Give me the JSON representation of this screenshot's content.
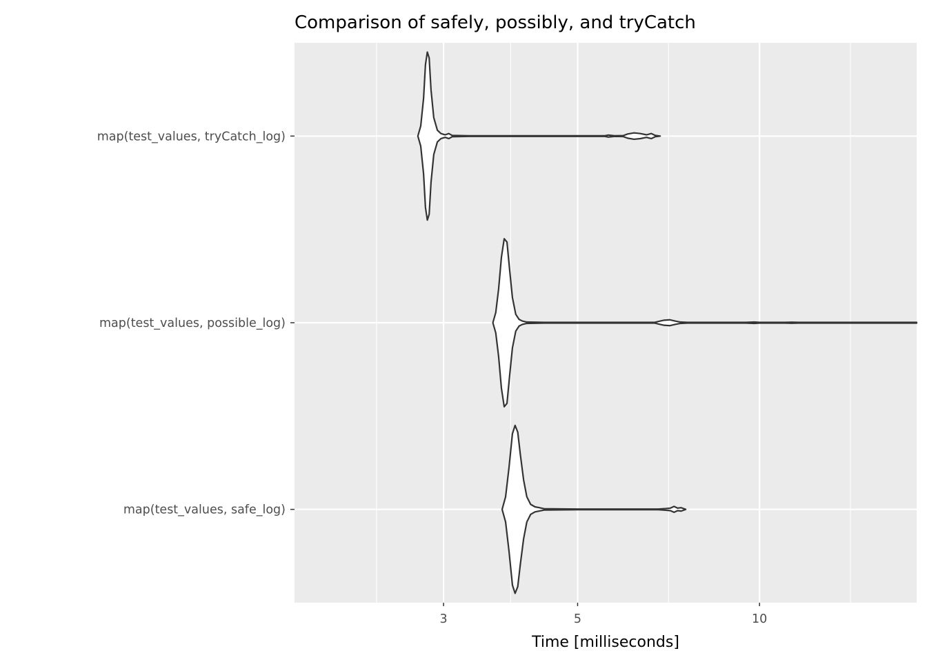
{
  "chart_data": {
    "type": "violin",
    "title": "Comparison of safely, possibly, and tryCatch",
    "xlabel": "Time [milliseconds]",
    "ylabel": "",
    "x_scale": "log",
    "x_ticks": [
      3,
      5,
      10
    ],
    "x_tick_labels": [
      "3",
      "5",
      "10"
    ],
    "xlim": [
      1.7,
      18.2
    ],
    "grid": true,
    "background_color": "#ebebeb",
    "violin_fill": "#ffffff",
    "violin_stroke": "#333333",
    "categories": [
      "map(test_values, tryCatch_log)",
      "map(test_values, possible_log)",
      "map(test_values, safe_log)"
    ],
    "series": [
      {
        "category": "map(test_values, tryCatch_log)",
        "min": 2.72,
        "max": 6.85,
        "density": [
          [
            2.72,
            0.0
          ],
          [
            2.75,
            0.12
          ],
          [
            2.78,
            0.45
          ],
          [
            2.8,
            0.85
          ],
          [
            2.82,
            1.0
          ],
          [
            2.84,
            0.93
          ],
          [
            2.86,
            0.55
          ],
          [
            2.89,
            0.22
          ],
          [
            2.93,
            0.07
          ],
          [
            2.97,
            0.03
          ],
          [
            3.02,
            0.015
          ],
          [
            3.06,
            0.03
          ],
          [
            3.1,
            0.008
          ],
          [
            3.3,
            0.004
          ],
          [
            4.0,
            0.004
          ],
          [
            5.2,
            0.004
          ],
          [
            5.55,
            0.004
          ],
          [
            5.62,
            0.012
          ],
          [
            5.75,
            0.004
          ],
          [
            5.95,
            0.006
          ],
          [
            6.05,
            0.025
          ],
          [
            6.2,
            0.038
          ],
          [
            6.35,
            0.03
          ],
          [
            6.5,
            0.015
          ],
          [
            6.62,
            0.03
          ],
          [
            6.72,
            0.008
          ],
          [
            6.85,
            0.0
          ]
        ]
      },
      {
        "category": "map(test_values, possible_log)",
        "min": 3.62,
        "max": 18.2,
        "density": [
          [
            3.62,
            0.0
          ],
          [
            3.66,
            0.12
          ],
          [
            3.7,
            0.4
          ],
          [
            3.74,
            0.78
          ],
          [
            3.78,
            1.0
          ],
          [
            3.82,
            0.96
          ],
          [
            3.86,
            0.62
          ],
          [
            3.9,
            0.3
          ],
          [
            3.95,
            0.1
          ],
          [
            4.0,
            0.04
          ],
          [
            4.05,
            0.02
          ],
          [
            4.12,
            0.008
          ],
          [
            4.4,
            0.004
          ],
          [
            5.5,
            0.004
          ],
          [
            6.7,
            0.004
          ],
          [
            6.8,
            0.015
          ],
          [
            6.95,
            0.03
          ],
          [
            7.1,
            0.035
          ],
          [
            7.25,
            0.02
          ],
          [
            7.4,
            0.008
          ],
          [
            7.6,
            0.004
          ],
          [
            9.5,
            0.004
          ],
          [
            9.8,
            0.008
          ],
          [
            10.0,
            0.004
          ],
          [
            11.0,
            0.004
          ],
          [
            11.3,
            0.006
          ],
          [
            11.6,
            0.004
          ],
          [
            18.2,
            0.004
          ]
        ]
      },
      {
        "category": "map(test_values, safe_log)",
        "min": 3.75,
        "max": 7.55,
        "density": [
          [
            3.75,
            0.0
          ],
          [
            3.8,
            0.15
          ],
          [
            3.85,
            0.5
          ],
          [
            3.9,
            0.9
          ],
          [
            3.94,
            1.0
          ],
          [
            3.98,
            0.92
          ],
          [
            4.02,
            0.65
          ],
          [
            4.07,
            0.35
          ],
          [
            4.12,
            0.15
          ],
          [
            4.18,
            0.06
          ],
          [
            4.25,
            0.03
          ],
          [
            4.32,
            0.02
          ],
          [
            4.4,
            0.008
          ],
          [
            5.0,
            0.004
          ],
          [
            6.8,
            0.004
          ],
          [
            7.0,
            0.01
          ],
          [
            7.12,
            0.015
          ],
          [
            7.22,
            0.035
          ],
          [
            7.32,
            0.015
          ],
          [
            7.42,
            0.02
          ],
          [
            7.55,
            0.0
          ]
        ]
      }
    ]
  }
}
